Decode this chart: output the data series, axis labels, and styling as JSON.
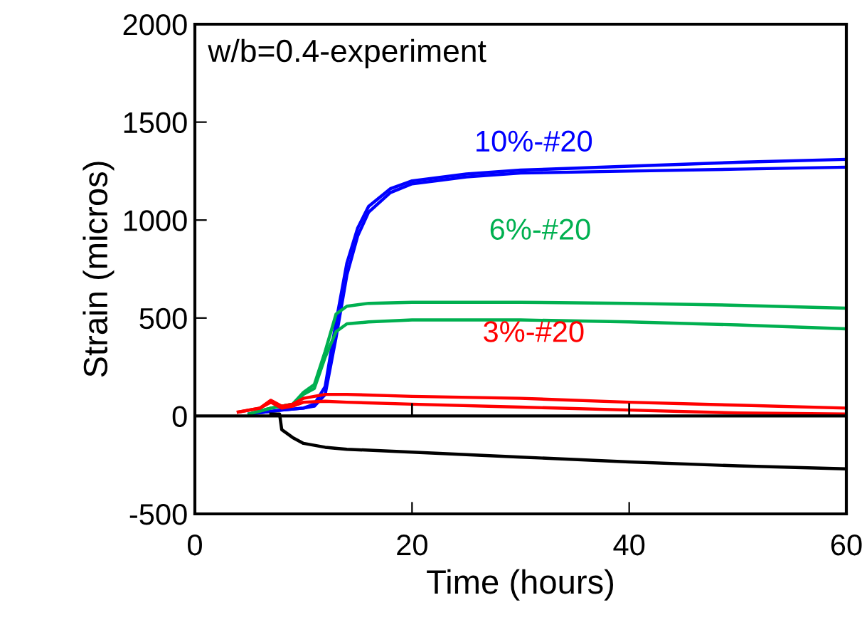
{
  "chart_data": {
    "type": "line",
    "title": "w/b=0.4-experiment",
    "xlabel": "Time (hours)",
    "ylabel": "Strain (micros)",
    "xlim": [
      0,
      60
    ],
    "xticks": [
      0,
      20,
      40,
      60
    ],
    "ylim": [
      -500,
      2000
    ],
    "yticks": [
      -500,
      0,
      500,
      1000,
      1500,
      2000
    ],
    "grid": false,
    "legend": false,
    "marker": "none",
    "line_style": "solid",
    "series": [
      {
        "color": "#0000ff",
        "x": [
          5,
          8,
          10,
          11,
          12,
          13,
          14,
          15,
          16,
          18,
          20,
          25,
          30,
          40,
          50,
          60
        ],
        "values": [
          10,
          30,
          40,
          60,
          150,
          480,
          780,
          960,
          1070,
          1160,
          1200,
          1235,
          1255,
          1275,
          1295,
          1310
        ]
      },
      {
        "color": "#0000ff",
        "x": [
          5,
          8,
          10,
          11,
          12,
          13,
          14,
          15,
          16,
          18,
          20,
          25,
          30,
          40,
          50,
          60
        ],
        "values": [
          10,
          30,
          40,
          50,
          110,
          400,
          720,
          920,
          1040,
          1140,
          1185,
          1220,
          1240,
          1250,
          1260,
          1270
        ]
      },
      {
        "color": "#00b050",
        "x": [
          5,
          7,
          9,
          10,
          11,
          12,
          13,
          14,
          16,
          20,
          30,
          40,
          50,
          60
        ],
        "values": [
          10,
          40,
          60,
          120,
          160,
          330,
          520,
          560,
          575,
          580,
          580,
          575,
          565,
          550
        ]
      },
      {
        "color": "#00b050",
        "x": [
          5,
          7,
          9,
          10,
          11,
          12,
          13,
          14,
          16,
          20,
          30,
          40,
          50,
          60
        ],
        "values": [
          10,
          40,
          60,
          110,
          140,
          300,
          430,
          470,
          480,
          490,
          490,
          480,
          465,
          445
        ]
      },
      {
        "color": "#ff0000",
        "x": [
          4,
          6,
          7,
          8,
          9,
          10,
          12,
          14,
          20,
          30,
          40,
          50,
          60
        ],
        "values": [
          20,
          40,
          80,
          50,
          60,
          90,
          110,
          110,
          100,
          90,
          70,
          55,
          40
        ]
      },
      {
        "color": "#ff0000",
        "x": [
          4,
          6,
          7,
          8,
          9,
          10,
          12,
          14,
          20,
          30,
          40,
          50,
          60
        ],
        "values": [
          20,
          40,
          70,
          40,
          50,
          70,
          75,
          70,
          60,
          45,
          30,
          15,
          10
        ]
      },
      {
        "color": "#000000",
        "x": [
          7,
          7.8,
          8,
          9,
          10,
          12,
          14,
          20,
          30,
          40,
          50,
          60
        ],
        "values": [
          10,
          10,
          -70,
          -110,
          -140,
          -160,
          -170,
          -185,
          -210,
          -235,
          -255,
          -270
        ]
      }
    ],
    "ref_lines": [
      {
        "axis": "y",
        "value": 0,
        "color": "#000000"
      }
    ],
    "annotations": [
      "10%-#20",
      "6%-#20",
      "3%-#20"
    ]
  }
}
